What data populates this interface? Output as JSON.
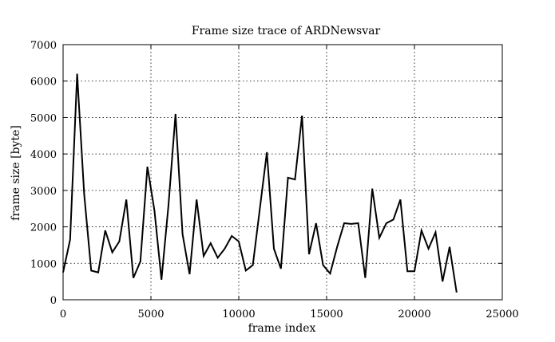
{
  "chart_data": {
    "type": "line",
    "title": "Frame size trace of ARDNewsvar",
    "xlabel": "frame index",
    "ylabel": "frame size [byte]",
    "xlim": [
      0,
      25000
    ],
    "ylim": [
      0,
      7000
    ],
    "x_ticks": [
      0,
      5000,
      10000,
      15000,
      20000,
      25000
    ],
    "y_ticks": [
      0,
      1000,
      2000,
      3000,
      4000,
      5000,
      6000,
      7000
    ],
    "grid": true,
    "series": [
      {
        "color": "#000000",
        "x": [
          0,
          400,
          800,
          1200,
          1600,
          2000,
          2400,
          2800,
          3200,
          3600,
          4000,
          4400,
          4800,
          5200,
          5600,
          6000,
          6400,
          6800,
          7200,
          7600,
          8000,
          8400,
          8800,
          9200,
          9600,
          10000,
          10400,
          10800,
          11200,
          11600,
          12000,
          12400,
          12800,
          13200,
          13600,
          14000,
          14400,
          14800,
          15200,
          15600,
          16000,
          16400,
          16800,
          17200,
          17600,
          18000,
          18400,
          18800,
          19200,
          19600,
          20000,
          20400,
          20800,
          21200,
          21600,
          22000,
          22400
        ],
        "y": [
          750,
          1650,
          6200,
          2900,
          800,
          750,
          1900,
          1300,
          1600,
          2750,
          600,
          1050,
          3650,
          2450,
          550,
          2600,
          5100,
          1800,
          700,
          2750,
          1200,
          1550,
          1150,
          1400,
          1750,
          1600,
          800,
          950,
          2500,
          4050,
          1400,
          850,
          3350,
          3300,
          5050,
          1250,
          2100,
          950,
          720,
          1450,
          2100,
          2080,
          2100,
          600,
          3050,
          1700,
          2100,
          2200,
          2750,
          780,
          780,
          1900,
          1400,
          1850,
          500,
          1450,
          200
        ]
      }
    ]
  }
}
